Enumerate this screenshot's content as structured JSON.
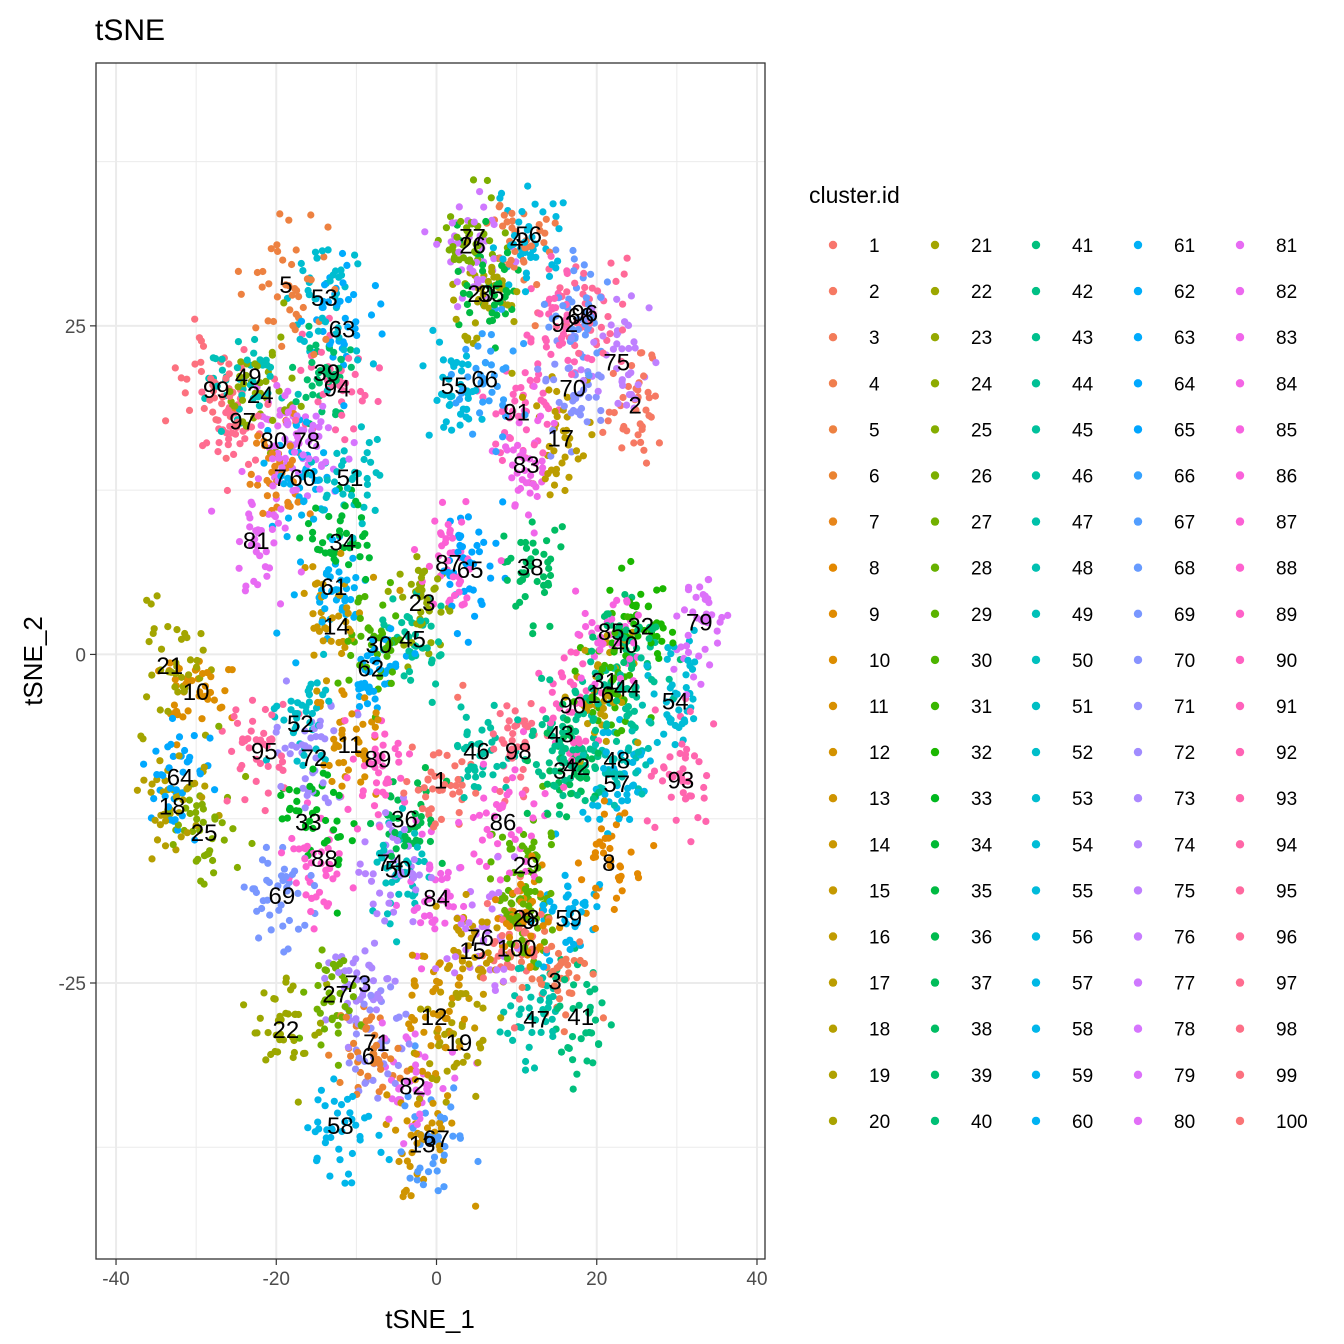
{
  "chart_data": {
    "type": "scatter",
    "title": "tSNE",
    "xlabel": "tSNE_1",
    "ylabel": "tSNE_2",
    "xlim": [
      -42.5,
      41
    ],
    "ylim": [
      -46,
      45
    ],
    "x_ticks": [
      -40,
      -20,
      0,
      20,
      40
    ],
    "y_ticks": [
      -25,
      0,
      25
    ],
    "x_tick_labels": [
      "-40",
      "-20",
      "0",
      "20",
      "40"
    ],
    "y_tick_labels": [
      "-25",
      "0",
      "25"
    ],
    "grid": true,
    "legend": {
      "title": "cluster.id",
      "placement": "right",
      "columns": 5
    },
    "clusters": [
      {
        "id": "1",
        "x": 0.5,
        "y": -9.5
      },
      {
        "id": "2",
        "x": 24.8,
        "y": 19
      },
      {
        "id": "3",
        "x": 14.8,
        "y": -24.8
      },
      {
        "id": "4",
        "x": 10,
        "y": 31.5
      },
      {
        "id": "5",
        "x": -18.8,
        "y": 28.2
      },
      {
        "id": "6",
        "x": -8.5,
        "y": -30.5
      },
      {
        "id": "7",
        "x": -19.5,
        "y": 13.5
      },
      {
        "id": "8",
        "x": 21.5,
        "y": -15.8
      },
      {
        "id": "9",
        "x": 11.5,
        "y": -20.2
      },
      {
        "id": "10",
        "x": -30,
        "y": -2.8
      },
      {
        "id": "11",
        "x": -10.8,
        "y": -6.8
      },
      {
        "id": "12",
        "x": -0.3,
        "y": -27.5
      },
      {
        "id": "13",
        "x": -1.8,
        "y": -37.2
      },
      {
        "id": "14",
        "x": -12.5,
        "y": 2.2
      },
      {
        "id": "15",
        "x": 4.5,
        "y": -22.5
      },
      {
        "id": "16",
        "x": 20.5,
        "y": -3
      },
      {
        "id": "17",
        "x": 15.5,
        "y": 16.5
      },
      {
        "id": "18",
        "x": -33,
        "y": -11.5
      },
      {
        "id": "19",
        "x": 2.8,
        "y": -29.5
      },
      {
        "id": "20",
        "x": 5.5,
        "y": 27.5
      },
      {
        "id": "21",
        "x": -33.3,
        "y": -0.8
      },
      {
        "id": "22",
        "x": -18.8,
        "y": -28.5
      },
      {
        "id": "23",
        "x": -1.8,
        "y": 4
      },
      {
        "id": "24",
        "x": -22,
        "y": 19.8
      },
      {
        "id": "25",
        "x": -29,
        "y": -13.5
      },
      {
        "id": "26",
        "x": 4.5,
        "y": 31.2
      },
      {
        "id": "27",
        "x": -12.6,
        "y": -25.8
      },
      {
        "id": "28",
        "x": 11.2,
        "y": -20
      },
      {
        "id": "29",
        "x": 11.2,
        "y": -16
      },
      {
        "id": "30",
        "x": -7.2,
        "y": 0.8
      },
      {
        "id": "31",
        "x": 21,
        "y": -2
      },
      {
        "id": "32",
        "x": 25.5,
        "y": 2.2
      },
      {
        "id": "33",
        "x": -16,
        "y": -12.7
      },
      {
        "id": "34",
        "x": -11.7,
        "y": 8.6
      },
      {
        "id": "35",
        "x": 6.8,
        "y": 27.5
      },
      {
        "id": "36",
        "x": -4,
        "y": -12.5
      },
      {
        "id": "37",
        "x": 16.2,
        "y": -8.8
      },
      {
        "id": "38",
        "x": 11.7,
        "y": 6.7
      },
      {
        "id": "39",
        "x": -13.7,
        "y": 21.5
      },
      {
        "id": "40",
        "x": 23.5,
        "y": 0.8
      },
      {
        "id": "41",
        "x": 18,
        "y": -27.5
      },
      {
        "id": "42",
        "x": 17.5,
        "y": -8.5
      },
      {
        "id": "43",
        "x": 15.5,
        "y": -6
      },
      {
        "id": "44",
        "x": 23.8,
        "y": -2.5
      },
      {
        "id": "45",
        "x": -3,
        "y": 1.2
      },
      {
        "id": "46",
        "x": 5,
        "y": -7.3
      },
      {
        "id": "47",
        "x": 12.5,
        "y": -27.7
      },
      {
        "id": "48",
        "x": 22.5,
        "y": -8
      },
      {
        "id": "49",
        "x": -23.5,
        "y": 21.2
      },
      {
        "id": "50",
        "x": -4.8,
        "y": -16.3
      },
      {
        "id": "51",
        "x": -10.8,
        "y": 13.5
      },
      {
        "id": "52",
        "x": -17,
        "y": -5.2
      },
      {
        "id": "53",
        "x": -14,
        "y": 27.2
      },
      {
        "id": "54",
        "x": 29.8,
        "y": -3.5
      },
      {
        "id": "55",
        "x": 2.2,
        "y": 20.5
      },
      {
        "id": "56",
        "x": 11.5,
        "y": 32
      },
      {
        "id": "57",
        "x": 22.5,
        "y": -9.8
      },
      {
        "id": "58",
        "x": -12,
        "y": -35.8
      },
      {
        "id": "59",
        "x": 16.5,
        "y": -20
      },
      {
        "id": "60",
        "x": -16.7,
        "y": 13.5
      },
      {
        "id": "61",
        "x": -12.8,
        "y": 5.2
      },
      {
        "id": "62",
        "x": -8.2,
        "y": -1
      },
      {
        "id": "63",
        "x": -11.8,
        "y": 24.8
      },
      {
        "id": "64",
        "x": -32,
        "y": -9.3
      },
      {
        "id": "65",
        "x": 4.2,
        "y": 6.5
      },
      {
        "id": "66",
        "x": 6,
        "y": 21
      },
      {
        "id": "67",
        "x": 0,
        "y": -36.8
      },
      {
        "id": "68",
        "x": 18,
        "y": 25.8
      },
      {
        "id": "69",
        "x": -19.3,
        "y": -18.3
      },
      {
        "id": "70",
        "x": 17,
        "y": 20.3
      },
      {
        "id": "71",
        "x": -7.5,
        "y": -29.5
      },
      {
        "id": "72",
        "x": -15.3,
        "y": -7.8
      },
      {
        "id": "73",
        "x": -9.8,
        "y": -25
      },
      {
        "id": "74",
        "x": -5.8,
        "y": -15.8
      },
      {
        "id": "75",
        "x": 22.5,
        "y": 22.3
      },
      {
        "id": "76",
        "x": 5.5,
        "y": -21.5
      },
      {
        "id": "77",
        "x": 4.5,
        "y": 31.8
      },
      {
        "id": "78",
        "x": -16.2,
        "y": 16.3
      },
      {
        "id": "79",
        "x": 32.8,
        "y": 2.5
      },
      {
        "id": "80",
        "x": -20.3,
        "y": 16.3
      },
      {
        "id": "81",
        "x": -22.5,
        "y": 8.7
      },
      {
        "id": "82",
        "x": -3,
        "y": -32.8
      },
      {
        "id": "83",
        "x": 11.2,
        "y": 14.5
      },
      {
        "id": "84",
        "x": 0,
        "y": -18.5
      },
      {
        "id": "85",
        "x": 21.8,
        "y": 1.8
      },
      {
        "id": "86",
        "x": 8.3,
        "y": -12.7
      },
      {
        "id": "87",
        "x": 1.5,
        "y": 7
      },
      {
        "id": "88",
        "x": -14,
        "y": -15.5
      },
      {
        "id": "89",
        "x": -7.3,
        "y": -7.9
      },
      {
        "id": "90",
        "x": 17,
        "y": -3.8
      },
      {
        "id": "91",
        "x": 10,
        "y": 18.5
      },
      {
        "id": "92",
        "x": 16,
        "y": 25.2
      },
      {
        "id": "93",
        "x": 30.5,
        "y": -9.5
      },
      {
        "id": "94",
        "x": -12.4,
        "y": 20.3
      },
      {
        "id": "95",
        "x": -21.5,
        "y": -7.3
      },
      {
        "id": "96",
        "x": 18.5,
        "y": 26
      },
      {
        "id": "97",
        "x": -24.2,
        "y": 17.8
      },
      {
        "id": "98",
        "x": 10.2,
        "y": -7.3
      },
      {
        "id": "99",
        "x": -27.5,
        "y": 20.2
      },
      {
        "id": "100",
        "x": 10,
        "y": -22.3
      }
    ]
  }
}
